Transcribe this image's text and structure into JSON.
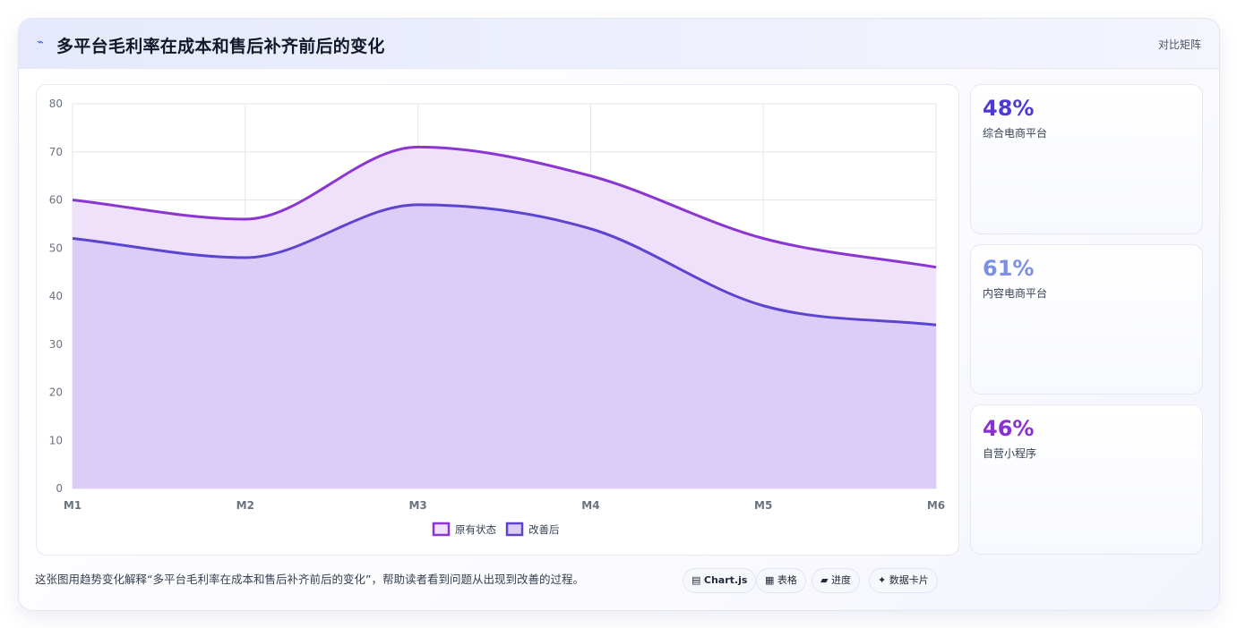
{
  "header": {
    "icon": "⌁",
    "title": "多平台毛利率在成本和售后补齐前后的变化",
    "tag": "对比矩阵"
  },
  "chart_data": {
    "type": "area",
    "categories": [
      "M1",
      "M2",
      "M3",
      "M4",
      "M5",
      "M6"
    ],
    "ylim": [
      0,
      80
    ],
    "yticks": [
      0,
      10,
      20,
      30,
      40,
      50,
      60,
      70,
      80
    ],
    "series": [
      {
        "name": "原有状态",
        "values": [
          60,
          56,
          71,
          65,
          52,
          46
        ],
        "color": "#8b36d2",
        "fill": "#efe1f9"
      },
      {
        "name": "改善后",
        "values": [
          52,
          48,
          59,
          54,
          38,
          34
        ],
        "color": "#5b44cf",
        "fill": "#dccdf7"
      }
    ],
    "legend": "bottom-center",
    "grid": true
  },
  "stats": [
    {
      "value": "48%",
      "label": "综合电商平台",
      "color": "#4c3bd2"
    },
    {
      "value": "61%",
      "label": "内容电商平台",
      "color": "#7c8fe4"
    },
    {
      "value": "46%",
      "label": "自营小程序",
      "color": "#8a2fd0"
    }
  ],
  "note": "这张图用趋势变化解释“多平台毛利率在成本和售后补齐前后的变化”，帮助读者看到问题从出现到改善的过程。",
  "chips": [
    {
      "icon": "▤",
      "label": "Chart.js"
    },
    {
      "icon": "▦",
      "label": "表格"
    },
    {
      "icon": "▰",
      "label": "进度"
    },
    {
      "icon": "✦",
      "label": "数据卡片"
    }
  ]
}
